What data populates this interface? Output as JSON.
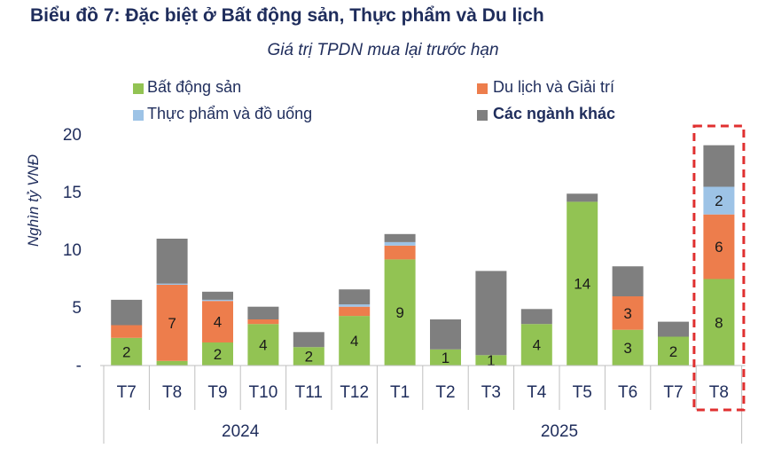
{
  "header": {
    "title": "Biểu đồ 7: Đặc biệt ở Bất động sản, Thực phẩm và Du lịch",
    "subtitle": "Giá trị TPDN mua lại trước hạn"
  },
  "legend": [
    {
      "label": "Bất động sản",
      "color": "#92c353"
    },
    {
      "label": "Du lịch và Giải trí",
      "color": "#ed7d4c"
    },
    {
      "label": "Thực phẩm và đồ uống",
      "color": "#9dc3e6"
    },
    {
      "label": "Các ngành khác",
      "color": "#7f7f7f"
    }
  ],
  "chart_data": {
    "type": "bar",
    "stacked": true,
    "ylabel": "Nghìn tỷ VNĐ",
    "ylim": [
      0,
      20
    ],
    "yticks": [
      "-",
      "5",
      "10",
      "15",
      "20"
    ],
    "categories": [
      "T7",
      "T8",
      "T9",
      "T10",
      "T11",
      "T12",
      "T1",
      "T2",
      "T3",
      "T4",
      "T5",
      "T6",
      "T7",
      "T8"
    ],
    "groups": [
      {
        "label": "2024",
        "from": 0,
        "to": 5
      },
      {
        "label": "2025",
        "from": 6,
        "to": 13
      }
    ],
    "series": [
      {
        "name": "Bất động sản",
        "color": "#92c353",
        "values": [
          2.4,
          0.4,
          2.0,
          3.6,
          1.6,
          4.3,
          9.2,
          1.4,
          0.9,
          3.6,
          14.2,
          3.1,
          2.5,
          7.5
        ],
        "labels": [
          "2",
          "",
          "2",
          "4",
          "2",
          "4",
          "9",
          "1",
          "1",
          "4",
          "14",
          "3",
          "2",
          "8"
        ]
      },
      {
        "name": "Du lịch và Giải trí",
        "color": "#ed7d4c",
        "values": [
          1.1,
          6.6,
          3.6,
          0.4,
          0,
          0.8,
          1.2,
          0,
          0,
          0,
          0,
          2.9,
          0,
          5.6
        ],
        "labels": [
          "",
          "7",
          "4",
          "",
          "",
          "",
          "",
          "",
          "",
          "",
          "",
          "3",
          "",
          "6"
        ]
      },
      {
        "name": "Thực phẩm và đồ uống",
        "color": "#9dc3e6",
        "values": [
          0,
          0.1,
          0.1,
          0,
          0,
          0.2,
          0.3,
          0,
          0,
          0,
          0,
          0,
          0,
          2.4
        ],
        "labels": [
          "",
          "",
          "",
          "",
          "",
          "",
          "",
          "",
          "",
          "",
          "",
          "",
          "",
          "2"
        ]
      },
      {
        "name": "Các ngành khác",
        "color": "#7f7f7f",
        "values": [
          2.2,
          3.9,
          0.7,
          1.1,
          1.3,
          1.3,
          0.7,
          2.6,
          7.3,
          1.3,
          0.7,
          2.6,
          1.3,
          3.6
        ],
        "labels": [
          "",
          "",
          "",
          "",
          "",
          "",
          "",
          "",
          "",
          "",
          "",
          "",
          "",
          ""
        ]
      }
    ],
    "highlight_index": 13
  }
}
